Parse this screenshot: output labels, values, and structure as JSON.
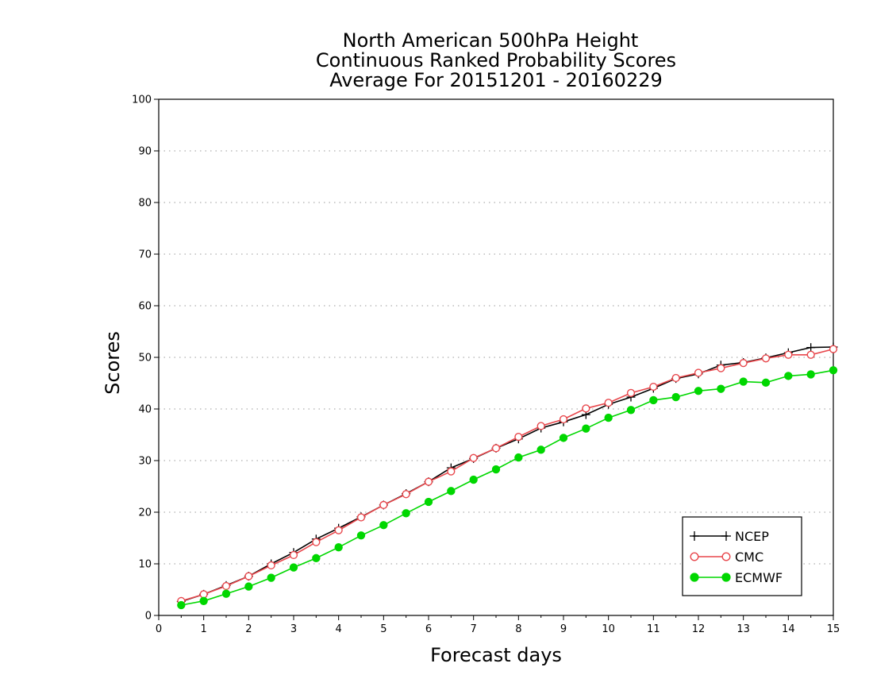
{
  "chart_data": {
    "type": "line",
    "title_lines": [
      "North American 500hPa Height",
      "Continuous Ranked Probability Scores",
      "Average For 20151201 - 20160229"
    ],
    "xlabel": "Forecast days",
    "ylabel": "Scores",
    "xlim": [
      0,
      15
    ],
    "ylim": [
      0,
      100
    ],
    "x_ticks": [
      0,
      1,
      2,
      3,
      4,
      5,
      6,
      7,
      8,
      9,
      10,
      11,
      12,
      13,
      14,
      15
    ],
    "y_ticks": [
      0,
      10,
      20,
      30,
      40,
      50,
      60,
      70,
      80,
      90,
      100
    ],
    "grid": "dotted-horizontal",
    "legend_position": "bottom-right",
    "x": [
      0.5,
      1,
      1.5,
      2,
      2.5,
      3,
      3.5,
      4,
      4.5,
      5,
      5.5,
      6,
      6.5,
      7,
      7.5,
      8,
      8.5,
      9,
      9.5,
      10,
      10.5,
      11,
      11.5,
      12,
      12.5,
      13,
      13.5,
      14,
      14.5,
      15
    ],
    "series": [
      {
        "name": "NCEP",
        "color": "#000000",
        "marker": "plus",
        "values": [
          2.7,
          4.1,
          5.8,
          7.6,
          10.0,
          12.2,
          14.8,
          16.9,
          19.1,
          21.4,
          23.6,
          25.9,
          28.6,
          30.4,
          32.4,
          34.2,
          36.3,
          37.5,
          38.9,
          40.9,
          42.3,
          44.0,
          45.9,
          46.8,
          48.5,
          49.0,
          49.9,
          50.9,
          51.9,
          52.0
        ]
      },
      {
        "name": "CMC",
        "color": "#e8474c",
        "marker": "open-circle",
        "values": [
          2.8,
          4.1,
          5.7,
          7.6,
          9.7,
          11.7,
          14.2,
          16.5,
          19.0,
          21.4,
          23.5,
          25.9,
          27.9,
          30.5,
          32.4,
          34.6,
          36.7,
          38.0,
          40.1,
          41.2,
          43.1,
          44.3,
          46.0,
          47.0,
          47.9,
          48.9,
          49.8,
          50.5,
          50.5,
          51.6
        ]
      },
      {
        "name": "ECMWF",
        "color": "#00d700",
        "marker": "filled-circle",
        "values": [
          2.0,
          2.8,
          4.2,
          5.6,
          7.3,
          9.3,
          11.1,
          13.2,
          15.5,
          17.5,
          19.8,
          22.0,
          24.1,
          26.3,
          28.3,
          30.6,
          32.1,
          34.4,
          36.2,
          38.3,
          39.8,
          41.7,
          42.3,
          43.5,
          43.9,
          45.3,
          45.1,
          46.4,
          46.7,
          47.5
        ]
      }
    ]
  }
}
